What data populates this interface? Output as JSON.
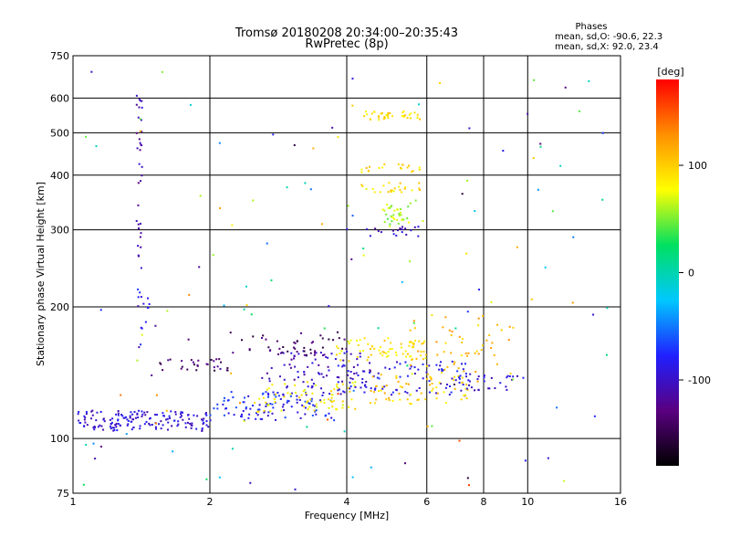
{
  "chart_data": {
    "type": "scatter",
    "title": "Tromsø 20180208 20:34:00–20:35:43",
    "subtitle": "RwPretec (8p)",
    "xlabel": "Frequency [MHz]",
    "ylabel": "Stationary phase Virtual Height [km]",
    "x_scale": "log",
    "y_scale": "log",
    "xlim": [
      1,
      16
    ],
    "ylim": [
      75,
      750
    ],
    "x_ticks": [
      1,
      2,
      4,
      6,
      8,
      10,
      16
    ],
    "y_ticks": [
      75,
      100,
      200,
      300,
      400,
      500,
      600,
      750
    ],
    "grid": true,
    "info": {
      "heading": "Phases",
      "line_o": "mean, sd,O: -90.6, 22.3",
      "line_x": "mean, sd,X:  92.0, 23.4"
    },
    "colorbar": {
      "label": "[deg]",
      "range": [
        -180,
        180
      ],
      "ticks": [
        100,
        0,
        -100
      ],
      "colors": [
        "#000000",
        "#5a0080",
        "#2020ff",
        "#00c8ff",
        "#00e060",
        "#ffff00",
        "#ff9000",
        "#ff0000"
      ]
    },
    "point_groups": [
      {
        "x_range": [
          1.02,
          2.0
        ],
        "h_range": [
          104,
          116
        ],
        "phase": -95,
        "n": 160
      },
      {
        "x_range": [
          2.0,
          3.8
        ],
        "h_range": [
          110,
          128
        ],
        "phase": -80,
        "n": 110
      },
      {
        "x_range": [
          2.5,
          4.2
        ],
        "h_range": [
          115,
          135
        ],
        "phase": 85,
        "n": 70
      },
      {
        "x_range": [
          2.6,
          4.5
        ],
        "h_range": [
          130,
          160
        ],
        "phase": -105,
        "n": 80
      },
      {
        "x_range": [
          2.2,
          4.0
        ],
        "h_range": [
          155,
          175
        ],
        "phase": -140,
        "n": 45
      },
      {
        "x_range": [
          1.55,
          2.2
        ],
        "h_range": [
          143,
          152
        ],
        "phase": -135,
        "n": 30
      },
      {
        "x_range": [
          3.8,
          6.0
        ],
        "h_range": [
          150,
          170
        ],
        "phase": 90,
        "n": 70
      },
      {
        "x_range": [
          3.8,
          7.5
        ],
        "h_range": [
          125,
          150
        ],
        "phase": -90,
        "n": 90
      },
      {
        "x_range": [
          4.5,
          7.5
        ],
        "h_range": [
          120,
          140
        ],
        "phase": 100,
        "n": 60
      },
      {
        "x_range": [
          5.5,
          9.5
        ],
        "h_range": [
          135,
          195
        ],
        "phase": 110,
        "n": 60
      },
      {
        "x_range": [
          7.0,
          10.0
        ],
        "h_range": [
          128,
          140
        ],
        "phase": -95,
        "n": 30
      },
      {
        "x_range": [
          4.3,
          5.8
        ],
        "h_range": [
          535,
          560
        ],
        "phase": 90,
        "n": 40
      },
      {
        "x_range": [
          4.3,
          5.8
        ],
        "h_range": [
          405,
          425
        ],
        "phase": 95,
        "n": 20
      },
      {
        "x_range": [
          4.3,
          5.8
        ],
        "h_range": [
          365,
          385
        ],
        "phase": 90,
        "n": 25
      },
      {
        "x_range": [
          4.8,
          5.7
        ],
        "h_range": [
          305,
          345
        ],
        "phase": 60,
        "n": 35
      },
      {
        "x_range": [
          4.0,
          5.8
        ],
        "h_range": [
          290,
          305
        ],
        "phase": -100,
        "n": 20
      },
      {
        "x_range": [
          1.38,
          1.42
        ],
        "h_range": [
          230,
          620
        ],
        "phase": -110,
        "n": 35
      },
      {
        "x_range": [
          1.38,
          1.48
        ],
        "h_range": [
          160,
          230
        ],
        "phase": -90,
        "n": 15
      },
      {
        "x_range": [
          1.05,
          15.0
        ],
        "h_range": [
          75,
          700
        ],
        "phase": 0,
        "n": 130,
        "random_phase": true
      }
    ]
  }
}
